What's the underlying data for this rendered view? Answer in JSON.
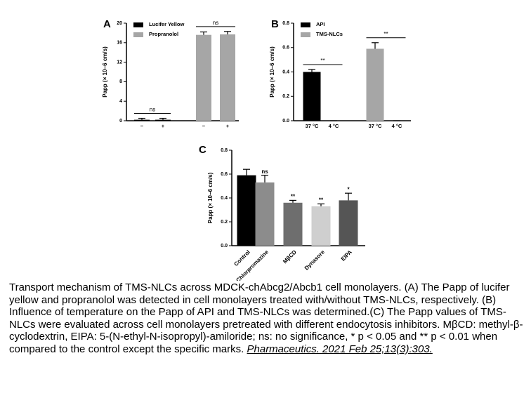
{
  "chart_data": [
    {
      "type": "bar",
      "panel": "A",
      "ylabel": "Papp (× 10−6 cm/s)",
      "categories": [
        "−",
        "+",
        "−",
        "+"
      ],
      "series": [
        {
          "name": "Lucifer Yellow",
          "color": "#000000",
          "values": [
            0.2,
            0.2,
            null,
            null
          ],
          "errors": [
            0.3,
            0.3,
            null,
            null
          ]
        },
        {
          "name": "Propranolol",
          "color": "#a6a6a6",
          "values": [
            null,
            null,
            17.6,
            17.7
          ],
          "errors": [
            null,
            null,
            0.6,
            0.6
          ]
        }
      ],
      "annotations": [
        "ns",
        "ns"
      ],
      "ylim": [
        0,
        20
      ],
      "yticks": [
        0,
        4,
        8,
        12,
        16,
        20
      ]
    },
    {
      "type": "bar",
      "panel": "B",
      "ylabel": "Papp (× 10−6 cm/s)",
      "categories": [
        "37 °C",
        "4 °C",
        "37 °C",
        "4 °C"
      ],
      "series": [
        {
          "name": "API",
          "color": "#000000",
          "values": [
            0.4,
            0,
            null,
            null
          ],
          "errors": [
            0.02,
            0,
            null,
            null
          ]
        },
        {
          "name": "TMS-NLCs",
          "color": "#a6a6a6",
          "values": [
            null,
            null,
            0.59,
            0
          ],
          "errors": [
            null,
            null,
            0.05,
            0
          ]
        }
      ],
      "annotations": [
        "**",
        "**"
      ],
      "ylim": [
        0,
        0.8
      ],
      "yticks": [
        {
          "value": 0,
          "label": "0.0"
        },
        0.2,
        0.4,
        0.6,
        0.8
      ]
    },
    {
      "type": "bar",
      "panel": "C",
      "ylabel": "Papp (× 10−6 cm/s)",
      "categories": [
        "Control",
        "Chlorpromazine",
        "MβCD",
        "Dynasore",
        "EIPA"
      ],
      "values": [
        0.59,
        0.53,
        0.36,
        0.33,
        0.38
      ],
      "errors": [
        0.05,
        0.06,
        0.02,
        0.02,
        0.06
      ],
      "colors": [
        "#000000",
        "#8c8c8c",
        "#6e6e6e",
        "#cfcfcf",
        "#555555"
      ],
      "annotations": [
        null,
        "ns",
        "**",
        "**",
        "*"
      ],
      "ylim": [
        0,
        0.8
      ],
      "yticks": [
        {
          "value": 0,
          "label": "0.0"
        },
        0.2,
        0.4,
        0.6,
        0.8
      ]
    }
  ],
  "caption": {
    "text": "Transport mechanism of TMS-NLCs across MDCK-chAbcg2/Abcb1 cell monolayers. (A) The Papp of lucifer yellow and propranolol was detected in cell monolayers treated with/without TMS-NLCs, respectively. (B) Influence of temperature on the Papp of API and TMS-NLCs was determined.(C) The Papp values of TMS-NLCs were evaluated across cell monolayers pretreated with different endocytosis inhibitors. MβCD: methyl-β-cyclodextrin, EIPA: 5-(N-ethyl-N-isopropyl)-amiloride; ns: no significance, * p < 0.05 and ** p < 0.01 when compared to the control except the specific marks.",
    "citation": "Pharmaceutics. 2021 Feb 25;13(3):303."
  }
}
